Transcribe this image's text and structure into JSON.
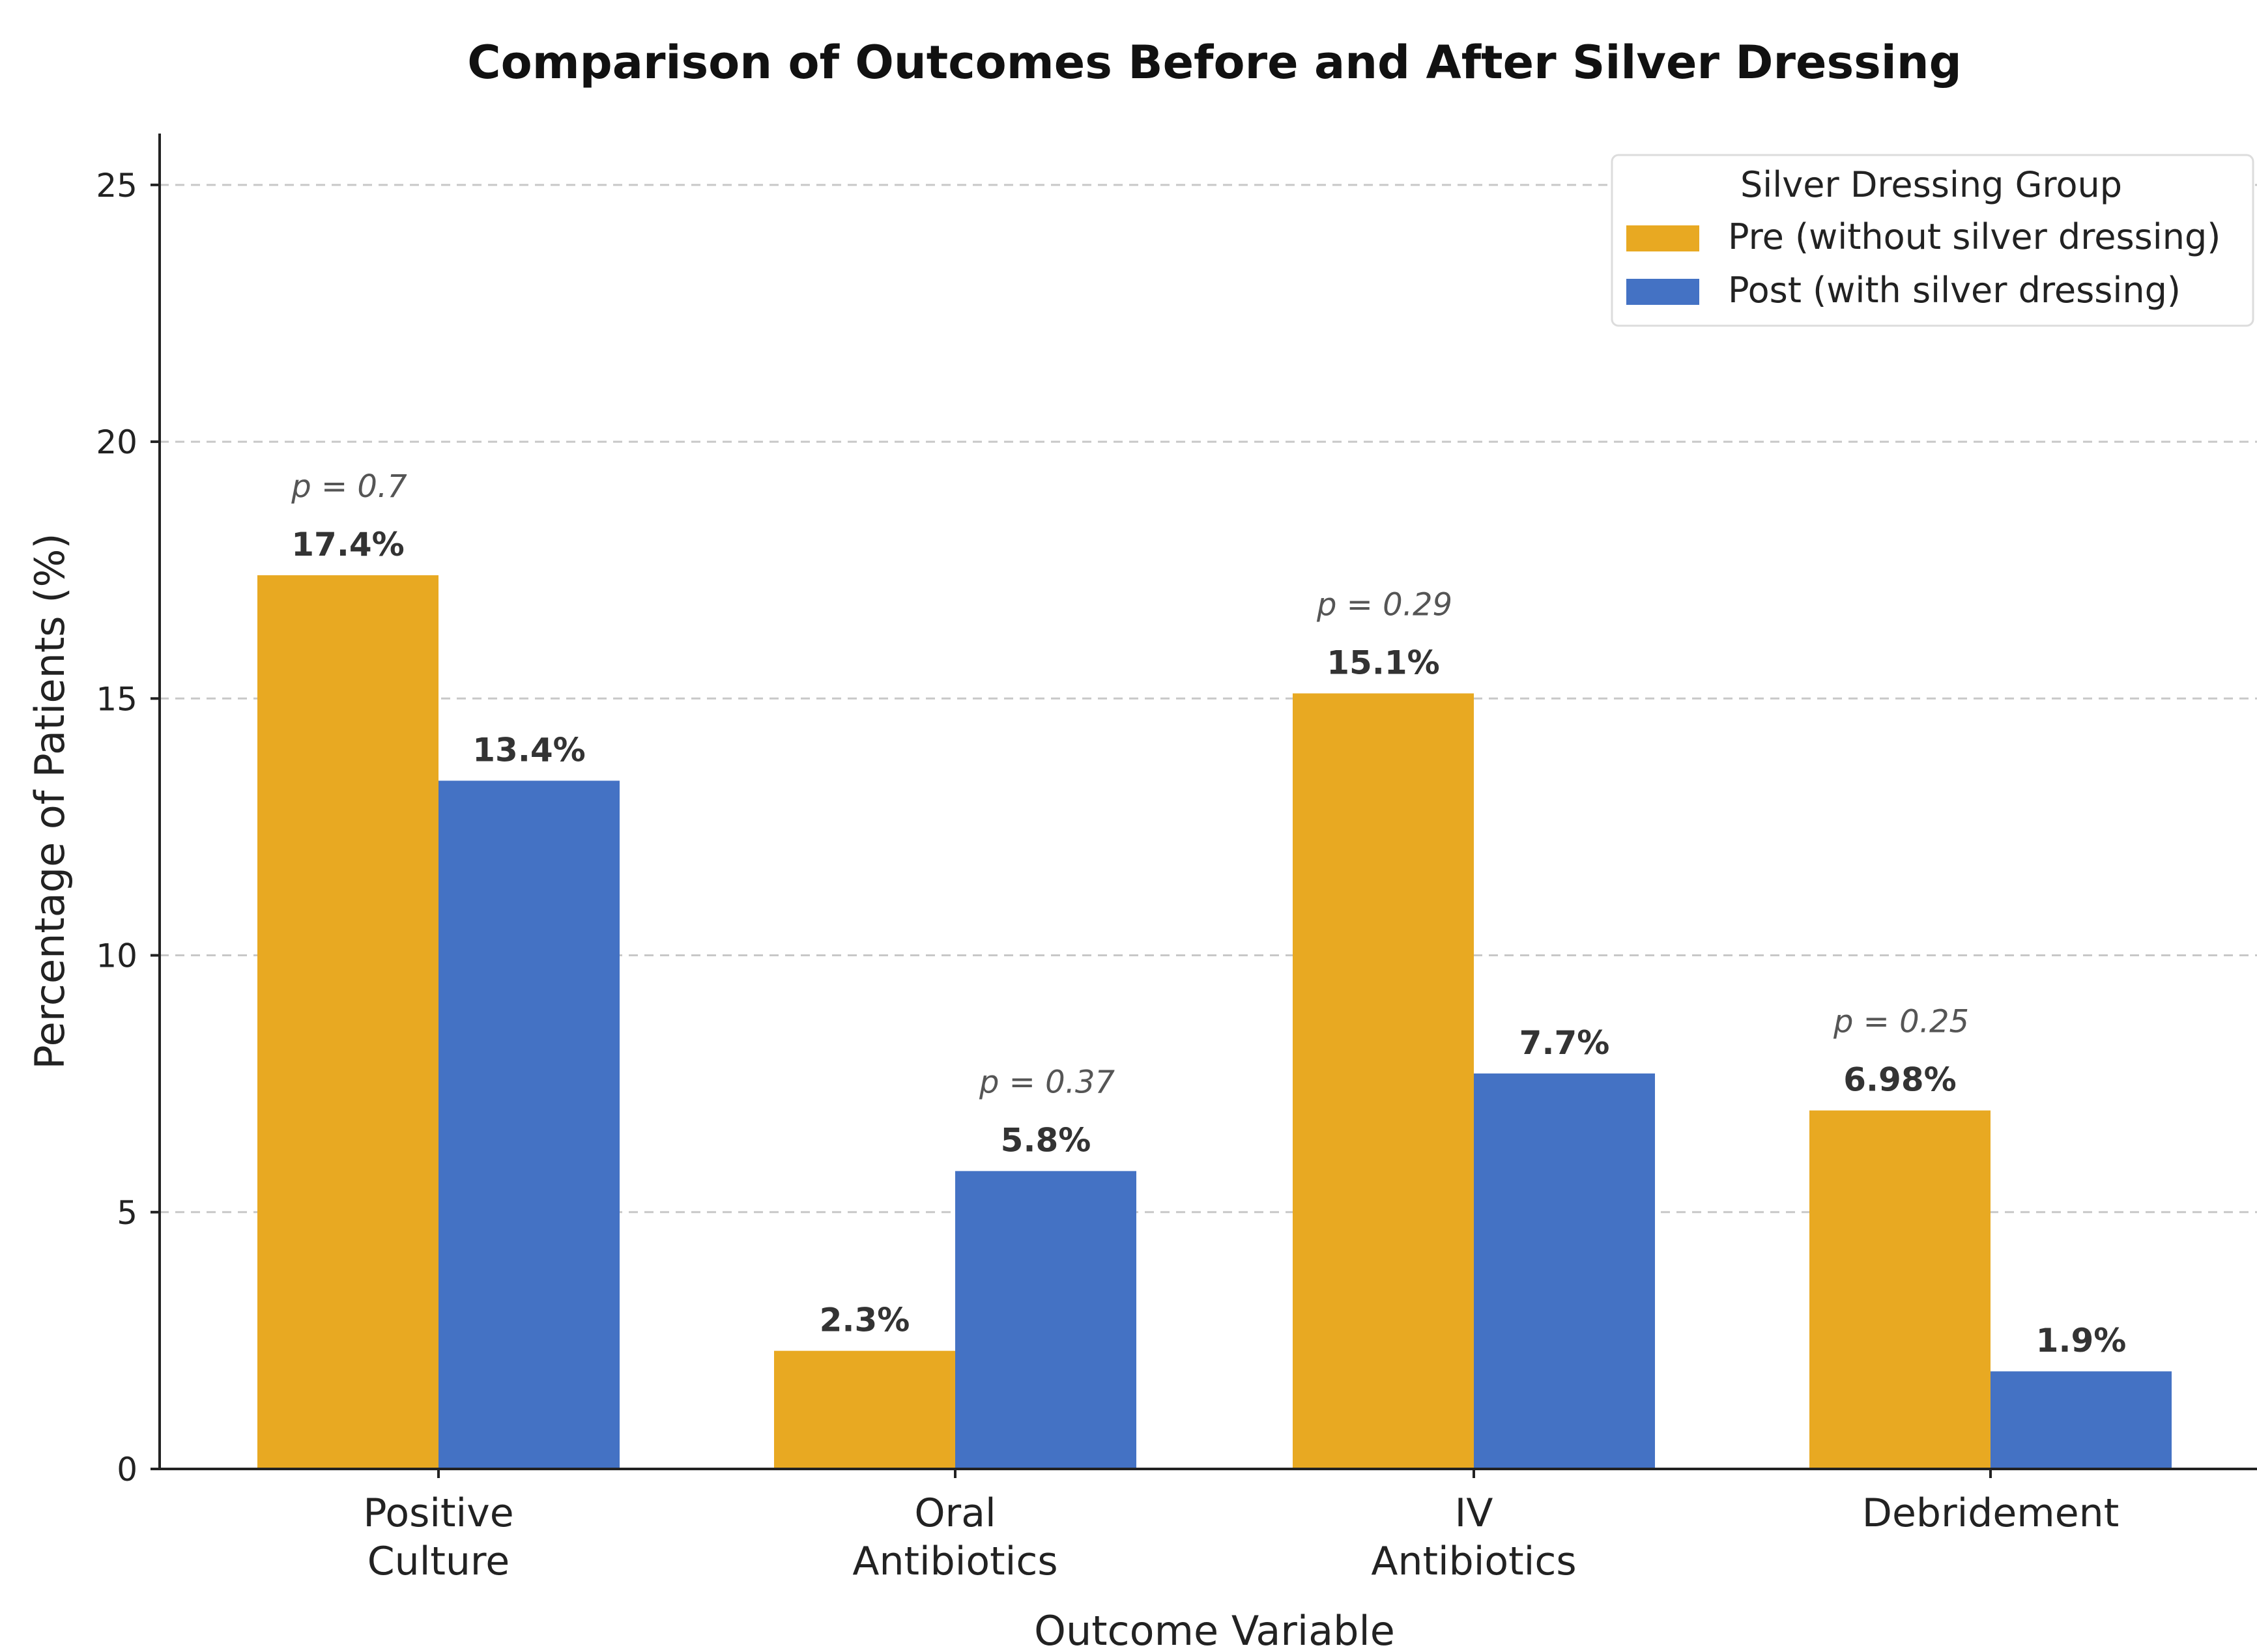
{
  "chart_data": {
    "type": "bar",
    "title": "Comparison of Outcomes Before and After Silver Dressing",
    "xlabel": "Outcome Variable",
    "ylabel": "Percentage of Patients (%)",
    "ylim": [
      0,
      26
    ],
    "yticks": [
      0,
      5,
      10,
      15,
      20,
      25
    ],
    "grid": "horizontal dashed",
    "legend": {
      "title": "Silver Dressing Group",
      "placement": "top-right"
    },
    "categories": [
      {
        "line1": "Positive",
        "line2": "Culture"
      },
      {
        "line1": "Oral",
        "line2": "Antibiotics"
      },
      {
        "line1": "IV",
        "line2": "Antibiotics"
      },
      {
        "line1": "Debridement",
        "line2": ""
      }
    ],
    "series": [
      {
        "name": "Pre (without silver dressing)",
        "color": "#e8a922",
        "values": [
          17.4,
          2.3,
          15.1,
          6.98
        ],
        "labels": [
          "17.4%",
          "2.3%",
          "15.1%",
          "6.98%"
        ]
      },
      {
        "name": "Post (with silver dressing)",
        "color": "#4472c4",
        "values": [
          13.4,
          5.8,
          7.7,
          1.9
        ],
        "labels": [
          "13.4%",
          "5.8%",
          "7.7%",
          "1.9%"
        ]
      }
    ],
    "p_values": [
      "p = 0.7",
      "p = 0.37",
      "p = 0.29",
      "p = 0.25"
    ]
  }
}
